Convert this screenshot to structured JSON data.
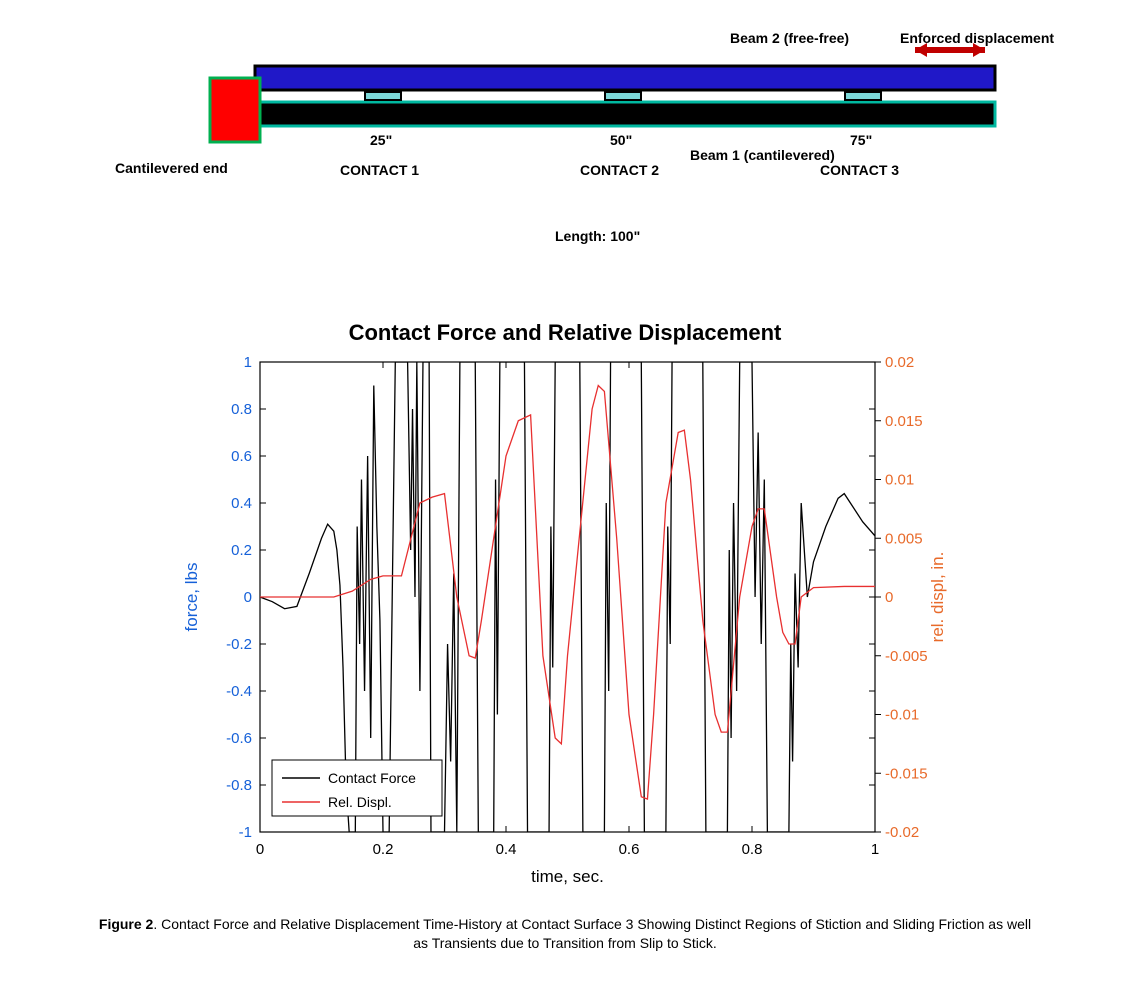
{
  "diagram": {
    "beam2_label": "Beam 2 (free-free)",
    "enforced_label": "Enforced displacement",
    "cantilever_label": "Cantilevered end",
    "beam1_label": "Beam 1 (cantilevered)",
    "length_label": "Length: 100\"",
    "contacts": [
      {
        "pos": "25\"",
        "name": "CONTACT 1"
      },
      {
        "pos": "50\"",
        "name": "CONTACT 2"
      },
      {
        "pos": "75\"",
        "name": "CONTACT 3"
      }
    ],
    "colors": {
      "red_block": "#ff0000",
      "red_block_stroke": "#00b050",
      "blue_beam": "#2018c8",
      "black_beam": "#000000",
      "teal_stroke": "#00b8a0",
      "pad": "#7cd8d8",
      "arrow": "#c00000"
    }
  },
  "chart": {
    "title": "Contact Force and Relative Displacement",
    "xlabel": "time, sec.",
    "ylabel_left": "force, lbs",
    "ylabel_right": "rel. displ, in.",
    "xlim": [
      0,
      1
    ],
    "xtick_step": 0.2,
    "ylim_left": [
      -1,
      1
    ],
    "ytick_left_step": 0.2,
    "ylim_right": [
      -0.02,
      0.02
    ],
    "ytick_right_step": 0.005,
    "colors": {
      "force_line": "#000000",
      "displ_line": "#e83030",
      "left_axis": "#1560d8",
      "right_axis": "#e86a2a",
      "box": "#000000",
      "bg": "#ffffff"
    },
    "legend": {
      "items": [
        {
          "label": "Contact Force",
          "color": "#000000"
        },
        {
          "label": "Rel. Displ.",
          "color": "#e83030"
        }
      ]
    },
    "force_data": [
      [
        0.0,
        0.0
      ],
      [
        0.02,
        -0.02
      ],
      [
        0.04,
        -0.05
      ],
      [
        0.06,
        -0.04
      ],
      [
        0.08,
        0.1
      ],
      [
        0.1,
        0.25
      ],
      [
        0.11,
        0.31
      ],
      [
        0.12,
        0.28
      ],
      [
        0.125,
        0.2
      ],
      [
        0.13,
        0.05
      ],
      [
        0.135,
        -0.3
      ],
      [
        0.14,
        -0.8
      ],
      [
        0.145,
        -1.0
      ],
      [
        0.155,
        -1.0
      ],
      [
        0.158,
        0.3
      ],
      [
        0.162,
        -0.2
      ],
      [
        0.165,
        0.5
      ],
      [
        0.17,
        -0.4
      ],
      [
        0.175,
        0.6
      ],
      [
        0.18,
        -0.6
      ],
      [
        0.185,
        0.9
      ],
      [
        0.19,
        0.3
      ],
      [
        0.195,
        -0.1
      ],
      [
        0.2,
        -1.0
      ],
      [
        0.21,
        -1.0
      ],
      [
        0.215,
        0.0
      ],
      [
        0.22,
        1.0
      ],
      [
        0.24,
        1.0
      ],
      [
        0.245,
        0.2
      ],
      [
        0.248,
        0.8
      ],
      [
        0.252,
        0.0
      ],
      [
        0.255,
        1.0
      ],
      [
        0.26,
        -0.4
      ],
      [
        0.265,
        1.0
      ],
      [
        0.275,
        1.0
      ],
      [
        0.278,
        -1.0
      ],
      [
        0.3,
        -1.0
      ],
      [
        0.305,
        -0.2
      ],
      [
        0.31,
        -0.7
      ],
      [
        0.315,
        0.1
      ],
      [
        0.32,
        -1.0
      ],
      [
        0.325,
        1.0
      ],
      [
        0.35,
        1.0
      ],
      [
        0.355,
        -1.0
      ],
      [
        0.38,
        -1.0
      ],
      [
        0.383,
        0.5
      ],
      [
        0.386,
        -0.5
      ],
      [
        0.39,
        1.0
      ],
      [
        0.43,
        1.0
      ],
      [
        0.435,
        -1.0
      ],
      [
        0.47,
        -1.0
      ],
      [
        0.473,
        0.3
      ],
      [
        0.476,
        -0.3
      ],
      [
        0.48,
        1.0
      ],
      [
        0.52,
        1.0
      ],
      [
        0.525,
        -1.0
      ],
      [
        0.56,
        -1.0
      ],
      [
        0.563,
        0.4
      ],
      [
        0.567,
        -0.4
      ],
      [
        0.57,
        1.0
      ],
      [
        0.62,
        1.0
      ],
      [
        0.625,
        -1.0
      ],
      [
        0.66,
        -1.0
      ],
      [
        0.663,
        0.3
      ],
      [
        0.667,
        -0.2
      ],
      [
        0.67,
        1.0
      ],
      [
        0.72,
        1.0
      ],
      [
        0.725,
        -1.0
      ],
      [
        0.76,
        -1.0
      ],
      [
        0.763,
        0.2
      ],
      [
        0.766,
        -0.6
      ],
      [
        0.77,
        0.4
      ],
      [
        0.775,
        -0.4
      ],
      [
        0.78,
        1.0
      ],
      [
        0.8,
        1.0
      ],
      [
        0.805,
        0.0
      ],
      [
        0.81,
        0.7
      ],
      [
        0.815,
        -0.2
      ],
      [
        0.82,
        0.5
      ],
      [
        0.825,
        -1.0
      ],
      [
        0.86,
        -1.0
      ],
      [
        0.863,
        -0.2
      ],
      [
        0.866,
        -0.7
      ],
      [
        0.87,
        0.1
      ],
      [
        0.875,
        -0.3
      ],
      [
        0.88,
        0.4
      ],
      [
        0.89,
        0.0
      ],
      [
        0.9,
        0.15
      ],
      [
        0.92,
        0.3
      ],
      [
        0.94,
        0.42
      ],
      [
        0.95,
        0.44
      ],
      [
        0.96,
        0.4
      ],
      [
        0.98,
        0.32
      ],
      [
        1.0,
        0.26
      ]
    ],
    "displ_data": [
      [
        0.0,
        0.0
      ],
      [
        0.12,
        0.0
      ],
      [
        0.15,
        0.0005
      ],
      [
        0.18,
        0.0015
      ],
      [
        0.2,
        0.0018
      ],
      [
        0.23,
        0.0018
      ],
      [
        0.26,
        0.008
      ],
      [
        0.28,
        0.0085
      ],
      [
        0.3,
        0.0088
      ],
      [
        0.32,
        0.0
      ],
      [
        0.34,
        -0.005
      ],
      [
        0.35,
        -0.0052
      ],
      [
        0.36,
        -0.002
      ],
      [
        0.4,
        0.012
      ],
      [
        0.42,
        0.015
      ],
      [
        0.44,
        0.0155
      ],
      [
        0.46,
        -0.005
      ],
      [
        0.48,
        -0.012
      ],
      [
        0.49,
        -0.0125
      ],
      [
        0.5,
        -0.005
      ],
      [
        0.54,
        0.016
      ],
      [
        0.55,
        0.018
      ],
      [
        0.56,
        0.0175
      ],
      [
        0.58,
        0.005
      ],
      [
        0.6,
        -0.01
      ],
      [
        0.62,
        -0.017
      ],
      [
        0.63,
        -0.0172
      ],
      [
        0.64,
        -0.01
      ],
      [
        0.66,
        0.008
      ],
      [
        0.68,
        0.014
      ],
      [
        0.69,
        0.0142
      ],
      [
        0.7,
        0.01
      ],
      [
        0.72,
        -0.002
      ],
      [
        0.74,
        -0.01
      ],
      [
        0.75,
        -0.0115
      ],
      [
        0.76,
        -0.0115
      ],
      [
        0.78,
        0.0
      ],
      [
        0.8,
        0.006
      ],
      [
        0.81,
        0.0075
      ],
      [
        0.82,
        0.0075
      ],
      [
        0.84,
        0.0
      ],
      [
        0.85,
        -0.003
      ],
      [
        0.86,
        -0.004
      ],
      [
        0.87,
        -0.004
      ],
      [
        0.88,
        0.0
      ],
      [
        0.9,
        0.0008
      ],
      [
        0.95,
        0.0009
      ],
      [
        1.0,
        0.0009
      ]
    ]
  },
  "caption": {
    "fig_label": "Figure 2",
    "text": ". Contact Force and Relative Displacement Time-History at Contact Surface 3 Showing Distinct Regions of Stiction and Sliding Friction as well as Transients due to Transition from Slip to Stick."
  }
}
